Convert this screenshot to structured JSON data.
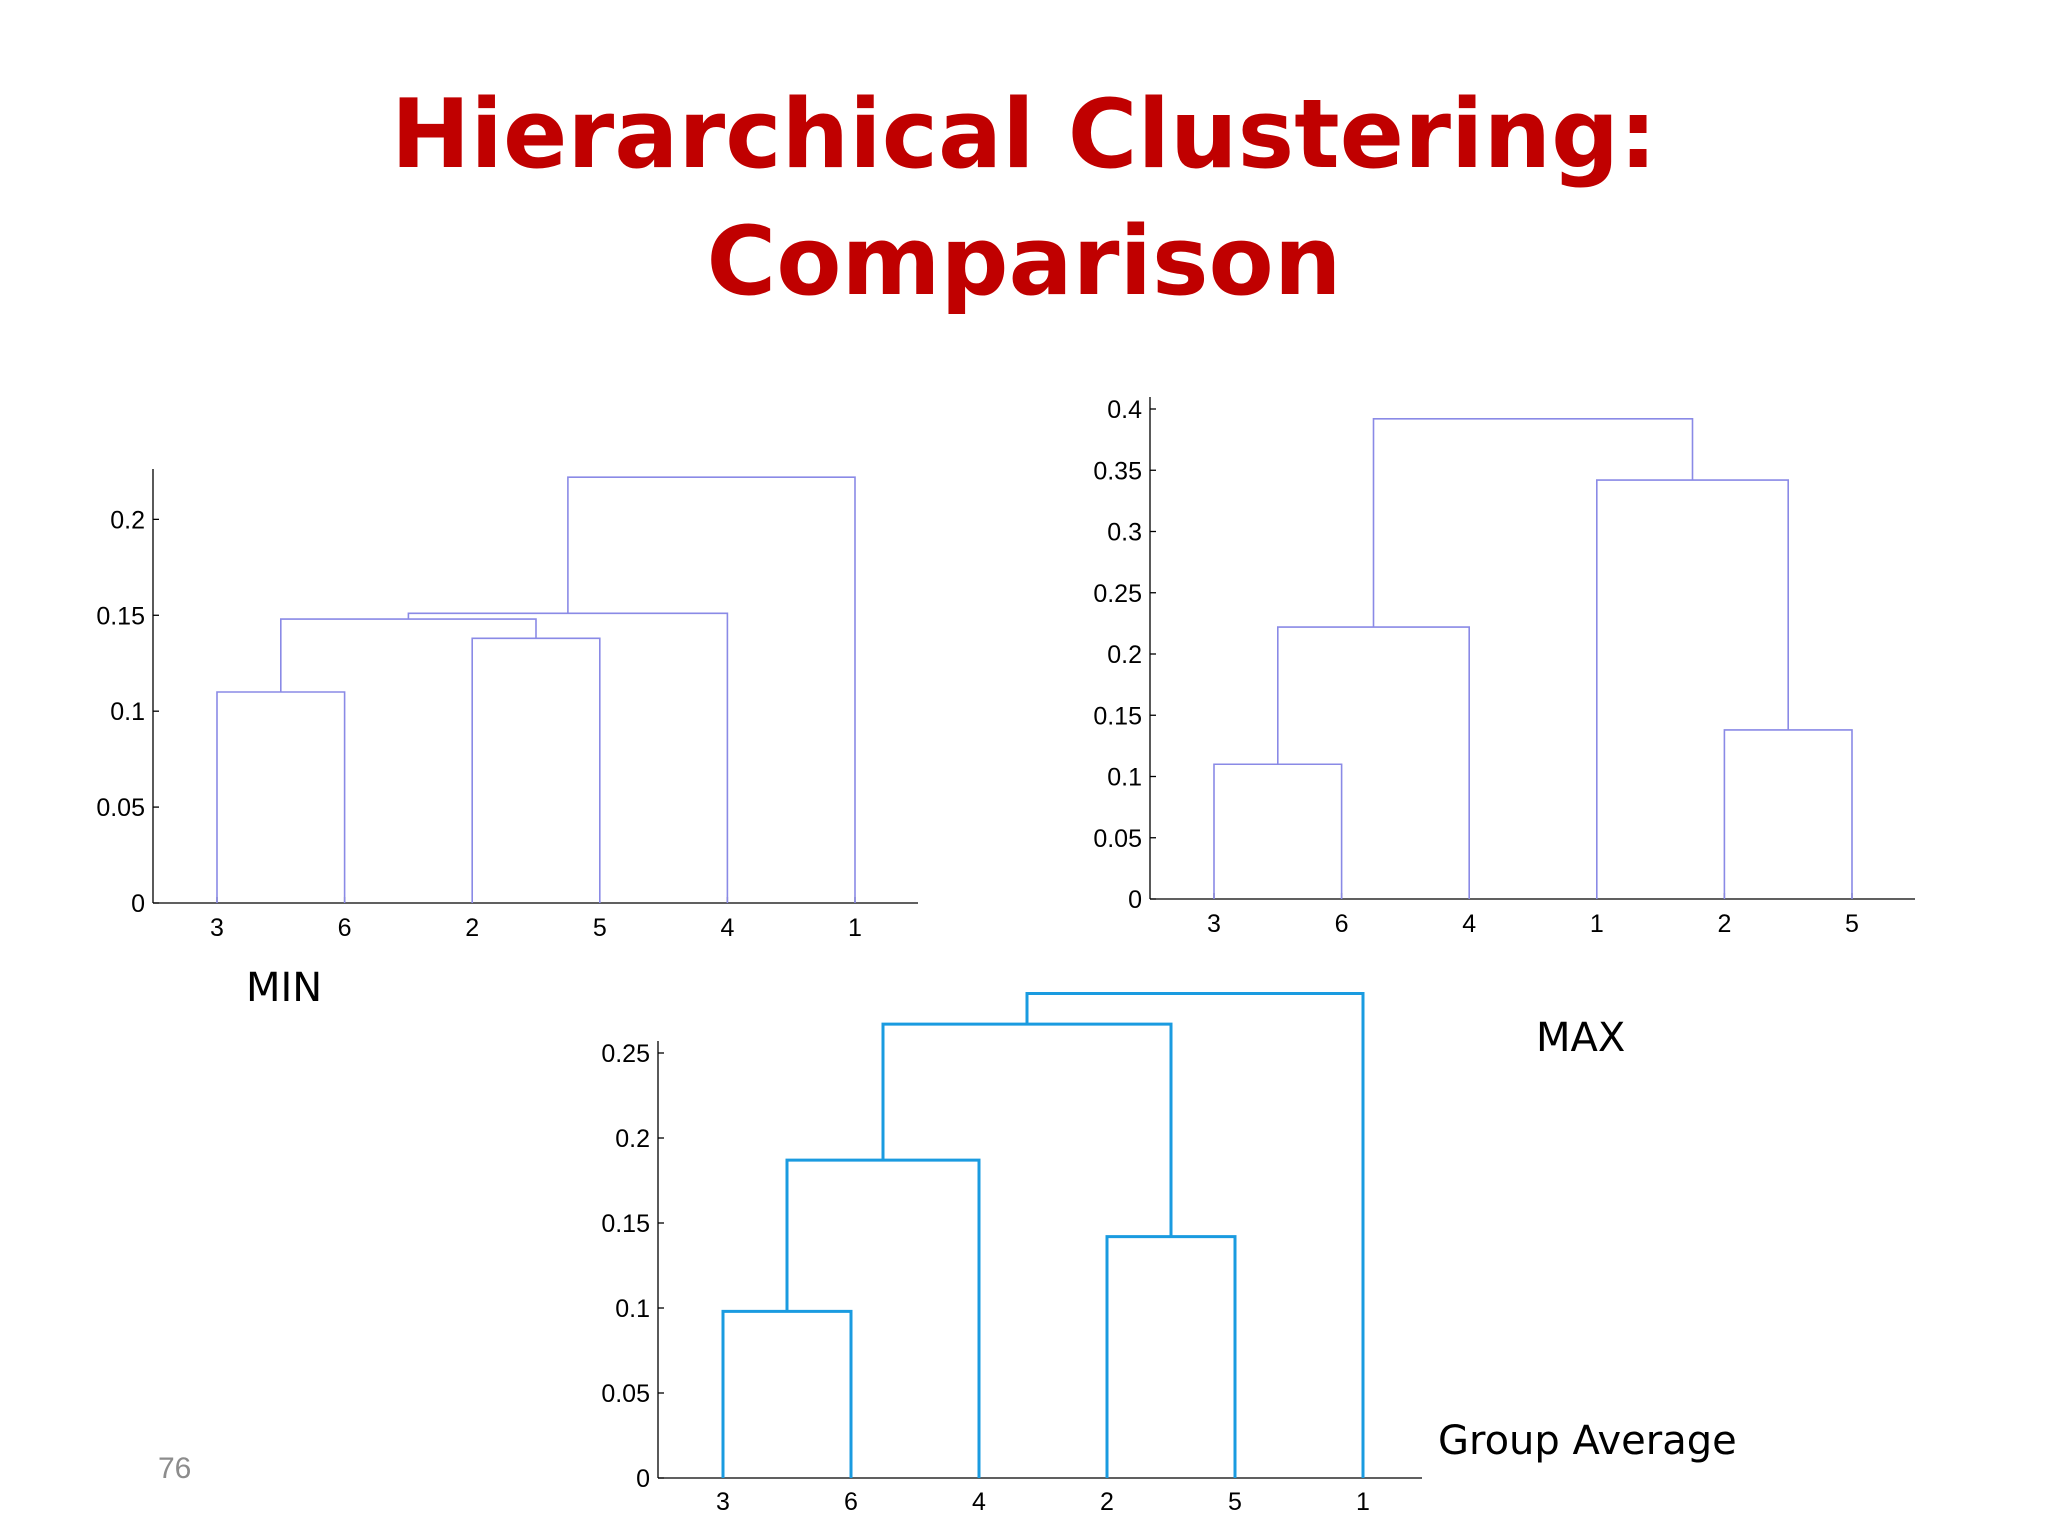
{
  "slide": {
    "title_line1": "Hierarchical Clustering:",
    "title_line2": "Comparison",
    "number": "76"
  },
  "captions": {
    "min": "MIN",
    "max": "MAX",
    "group_average": "Group Average"
  },
  "chart_data": [
    {
      "type": "dendrogram",
      "caption": "MIN",
      "color": "#8a8ae6",
      "ylim": [
        0,
        0.22
      ],
      "yticks": [
        0,
        0.05,
        0.1,
        0.15,
        0.2
      ],
      "ytick_labels": [
        "0",
        "0.05",
        "0.1",
        "0.15",
        "0.2"
      ],
      "leaves": [
        "3",
        "6",
        "2",
        "5",
        "4",
        "1"
      ],
      "merges": [
        {
          "a": "3",
          "b": "6",
          "height": 0.11
        },
        {
          "a": "2",
          "b": "5",
          "height": 0.138
        },
        {
          "a": "3,6",
          "b": "2,5",
          "height": 0.148
        },
        {
          "a": "3,6,2,5",
          "b": "4",
          "height": 0.151
        },
        {
          "a": "3,6,2,5,4",
          "b": "1",
          "height": 0.222
        }
      ]
    },
    {
      "type": "dendrogram",
      "caption": "MAX",
      "color": "#8a8ae6",
      "ylim": [
        0,
        0.4
      ],
      "yticks": [
        0,
        0.05,
        0.1,
        0.15,
        0.2,
        0.25,
        0.3,
        0.35,
        0.4
      ],
      "ytick_labels": [
        "0",
        "0.05",
        "0.1",
        "0.15",
        "0.2",
        "0.25",
        "0.3",
        "0.35",
        "0.4"
      ],
      "leaves": [
        "3",
        "6",
        "4",
        "1",
        "2",
        "5"
      ],
      "merges": [
        {
          "a": "3",
          "b": "6",
          "height": 0.11
        },
        {
          "a": "2",
          "b": "5",
          "height": 0.138
        },
        {
          "a": "3,6",
          "b": "4",
          "height": 0.222
        },
        {
          "a": "1",
          "b": "2,5",
          "height": 0.342
        },
        {
          "a": "3,6,4",
          "b": "1,2,5",
          "height": 0.392
        }
      ]
    },
    {
      "type": "dendrogram",
      "caption": "Group Average",
      "color": "#1a9be0",
      "ylim": [
        0,
        0.25
      ],
      "yticks": [
        0,
        0.05,
        0.1,
        0.15,
        0.2,
        0.25
      ],
      "ytick_labels": [
        "0",
        "0.05",
        "0.1",
        "0.15",
        "0.2",
        "0.25"
      ],
      "leaves": [
        "3",
        "6",
        "4",
        "2",
        "5",
        "1"
      ],
      "merges": [
        {
          "a": "3",
          "b": "6",
          "height": 0.098
        },
        {
          "a": "2",
          "b": "5",
          "height": 0.142
        },
        {
          "a": "3,6",
          "b": "4",
          "height": 0.187
        },
        {
          "a": "3,6,4",
          "b": "2,5",
          "height": 0.267
        },
        {
          "a": "3,6,4,2,5",
          "b": "1",
          "height": 0.285
        }
      ]
    }
  ]
}
